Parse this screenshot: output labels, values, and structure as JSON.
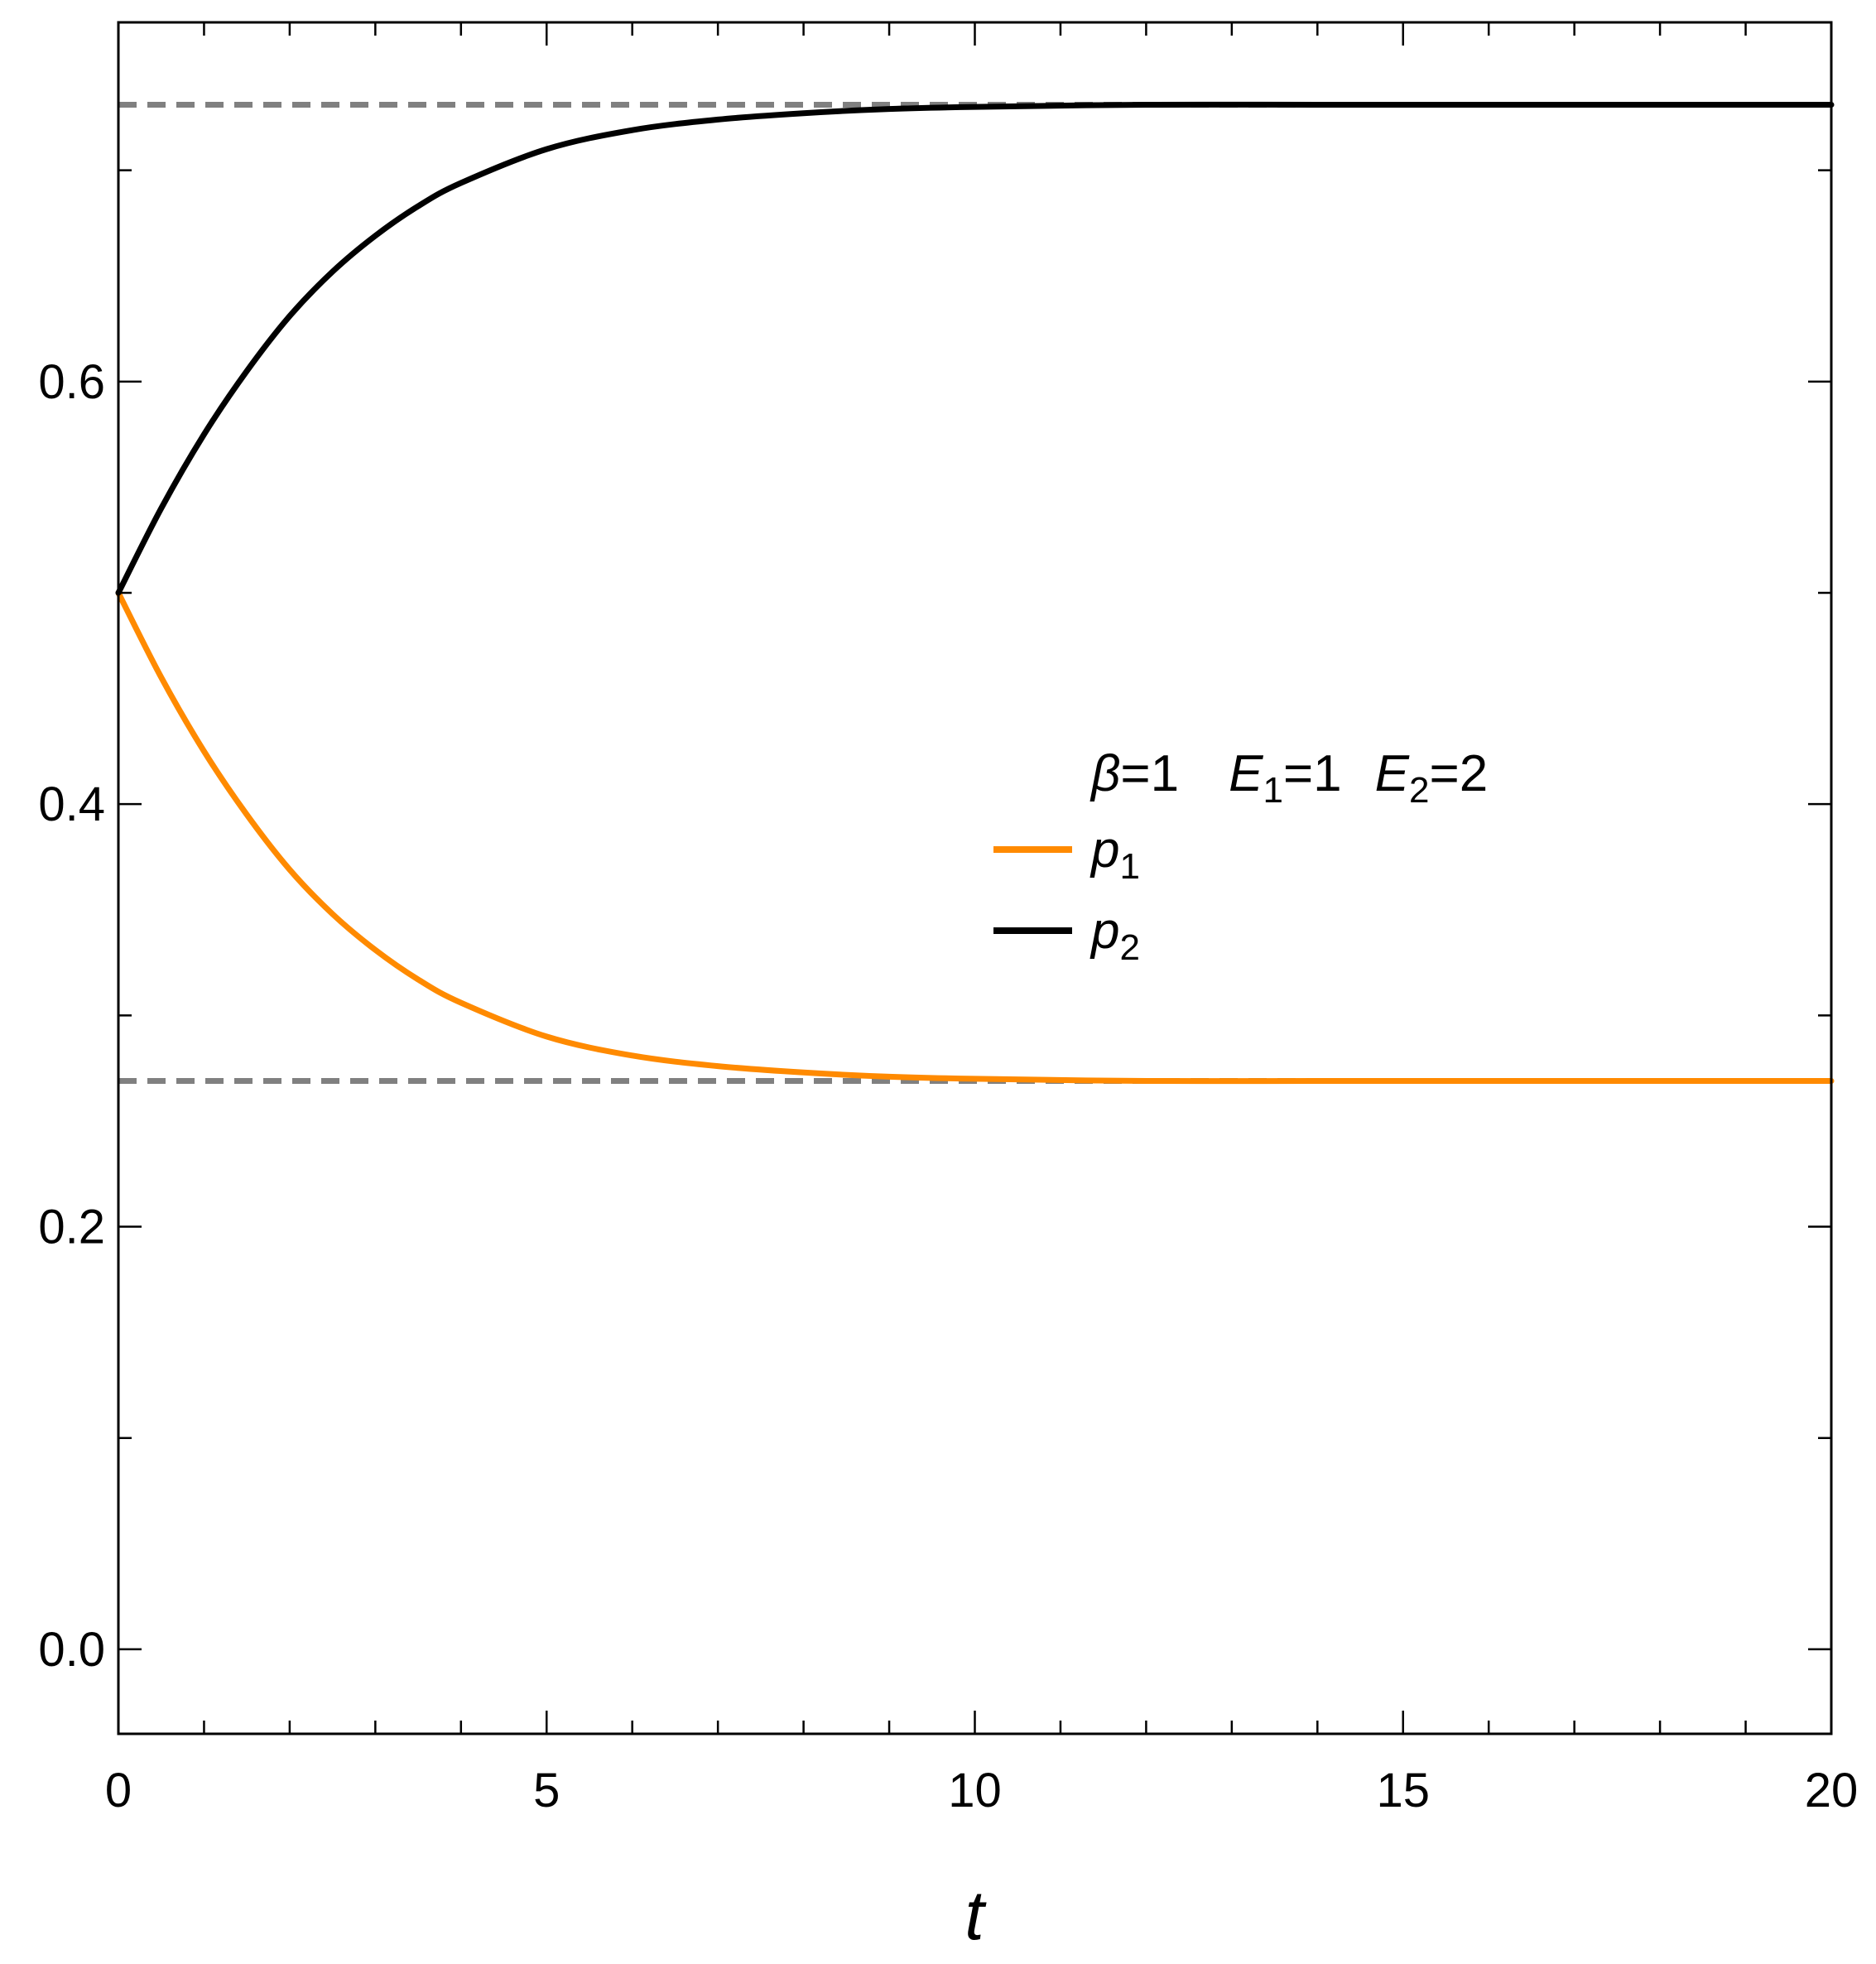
{
  "chart_data": {
    "type": "line",
    "xlabel": "t",
    "ylabel": "",
    "title": "",
    "xlim": [
      0,
      20
    ],
    "ylim": [
      -0.04,
      0.77
    ],
    "xticks": [
      {
        "value": 0,
        "label": "0"
      },
      {
        "value": 5,
        "label": "5"
      },
      {
        "value": 10,
        "label": "10"
      },
      {
        "value": 15,
        "label": "15"
      },
      {
        "value": 20,
        "label": "20"
      }
    ],
    "yticks": [
      {
        "value": 0.0,
        "label": "0.0"
      },
      {
        "value": 0.2,
        "label": "0.2"
      },
      {
        "value": 0.4,
        "label": "0.4"
      },
      {
        "value": 0.6,
        "label": "0.6"
      }
    ],
    "x_minor_step": 1,
    "y_minor_step": 0.1,
    "grid": false,
    "legend": {
      "position": "center-right",
      "header": {
        "beta": "β",
        "beta_eq": "=1",
        "e1": "E",
        "e1_sub": "1",
        "e1_eq": "=1",
        "e2": "E",
        "e2_sub": "2",
        "e2_eq": "=2"
      },
      "entries": [
        {
          "symbol": "p",
          "sub": "1",
          "color": "#ff8a00"
        },
        {
          "symbol": "p",
          "sub": "2",
          "color": "#000000"
        }
      ]
    },
    "reference_lines": [
      {
        "y": 0.731,
        "color": "#808080",
        "style": "dashed"
      },
      {
        "y": 0.269,
        "color": "#808080",
        "style": "dashed"
      }
    ],
    "series": [
      {
        "color": "#ff8a00",
        "x": [
          0,
          0.5,
          1,
          1.5,
          2,
          2.5,
          3,
          3.5,
          4,
          5,
          6,
          7,
          8,
          9,
          10,
          12,
          14,
          16,
          18,
          20
        ],
        "y": [
          0.5,
          0.46,
          0.425,
          0.395,
          0.369,
          0.348,
          0.331,
          0.317,
          0.306,
          0.29,
          0.281,
          0.276,
          0.273,
          0.271,
          0.27,
          0.269,
          0.269,
          0.269,
          0.269,
          0.269
        ]
      },
      {
        "color": "#000000",
        "x": [
          0,
          0.5,
          1,
          1.5,
          2,
          2.5,
          3,
          3.5,
          4,
          5,
          6,
          7,
          8,
          9,
          10,
          12,
          14,
          16,
          18,
          20
        ],
        "y": [
          0.5,
          0.54,
          0.575,
          0.605,
          0.631,
          0.652,
          0.669,
          0.683,
          0.694,
          0.71,
          0.719,
          0.724,
          0.727,
          0.729,
          0.73,
          0.731,
          0.731,
          0.731,
          0.731,
          0.731
        ]
      }
    ]
  }
}
